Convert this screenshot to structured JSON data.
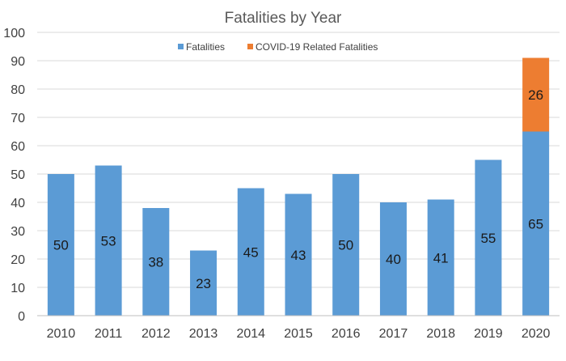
{
  "chart_data": {
    "type": "bar",
    "stacked": true,
    "title": "Fatalities by Year",
    "xlabel": "",
    "ylabel": "",
    "categories": [
      "2010",
      "2011",
      "2012",
      "2013",
      "2014",
      "2015",
      "2016",
      "2017",
      "2018",
      "2019",
      "2020"
    ],
    "series": [
      {
        "name": "Fatalities",
        "color": "#5b9bd5",
        "values": [
          50,
          53,
          38,
          23,
          45,
          43,
          50,
          40,
          41,
          55,
          65
        ]
      },
      {
        "name": "COVID-19 Related Fatalities",
        "color": "#ed7d31",
        "values": [
          0,
          0,
          0,
          0,
          0,
          0,
          0,
          0,
          0,
          0,
          26
        ]
      }
    ],
    "ylim": [
      0,
      100
    ],
    "yticks": [
      0,
      10,
      20,
      30,
      40,
      50,
      60,
      70,
      80,
      90,
      100
    ],
    "grid": true,
    "legend": "top-center"
  }
}
